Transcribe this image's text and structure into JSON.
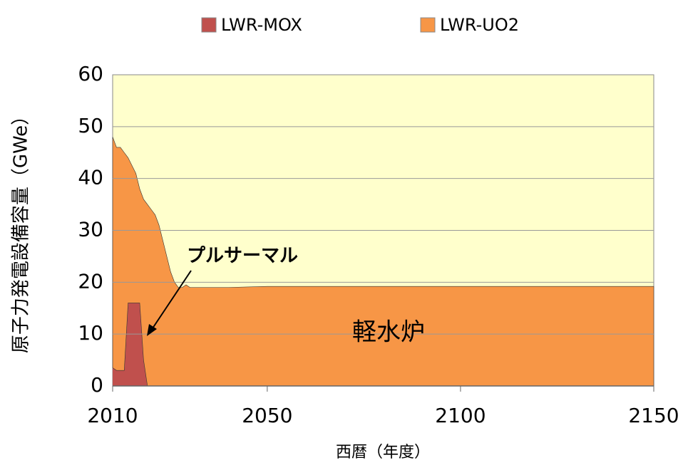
{
  "chart_data": {
    "type": "stacked_area",
    "x": [
      2010,
      2011,
      2012,
      2013,
      2014,
      2015,
      2016,
      2017,
      2018,
      2019,
      2020,
      2021,
      2022,
      2023,
      2024,
      2025,
      2026,
      2027,
      2028,
      2029,
      2030,
      2040,
      2050,
      2100,
      2150
    ],
    "series": [
      {
        "name": "LWR-MOX",
        "color": "#c0504d",
        "values": [
          3.5,
          3,
          3,
          3,
          16,
          16,
          16,
          16,
          5,
          0,
          0,
          0,
          0,
          0,
          0,
          0,
          0,
          0,
          0,
          0,
          0,
          0,
          0,
          0,
          0
        ]
      },
      {
        "name": "LWR-UO2",
        "color": "#f79646",
        "values": [
          44.5,
          43,
          43,
          42,
          28,
          26.5,
          25,
          22,
          31,
          35,
          34,
          33,
          31,
          28,
          25,
          22,
          20,
          19,
          19,
          19.5,
          19,
          19,
          19.2,
          19.2,
          19.2
        ]
      }
    ],
    "xlim": [
      2010,
      2150
    ],
    "xticks": [
      2010,
      2050,
      2100,
      2150
    ],
    "ylim": [
      0,
      60
    ],
    "yticks": [
      0,
      10,
      20,
      30,
      40,
      50,
      60
    ],
    "ylabel": "原子力発電設備容量（GWe）",
    "xlabel": "西暦（年度）",
    "annotations": [
      "プルサーマル",
      "軽水炉"
    ],
    "grid": true,
    "legend": "top",
    "background": "#ffffcc"
  }
}
